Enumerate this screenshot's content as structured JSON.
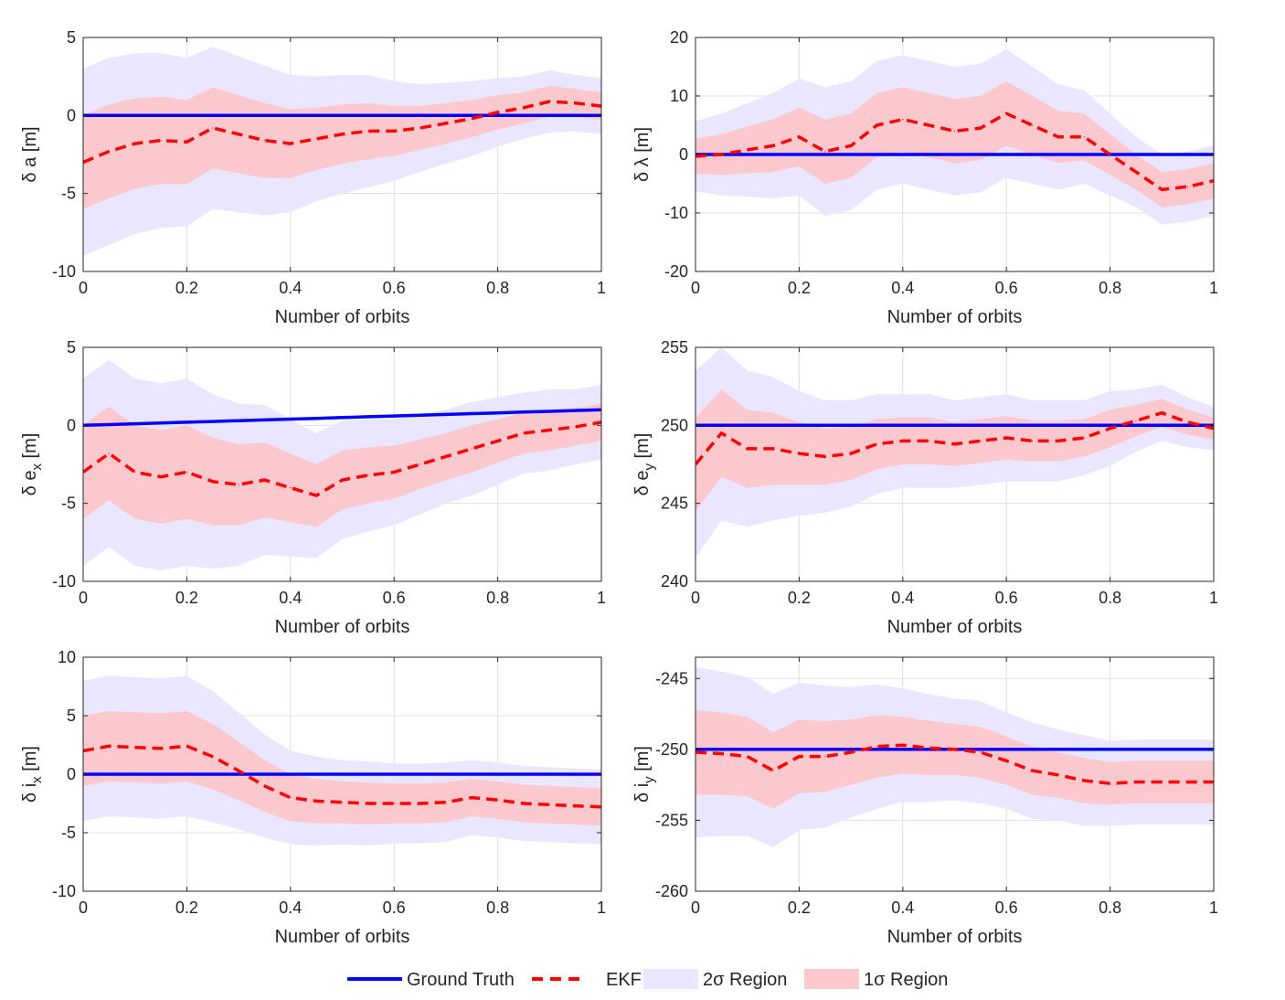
{
  "colors": {
    "truth": "#0000ff",
    "ekf": "#ff0000",
    "two_sigma": "#ebe6ff",
    "one_sigma": "#fac8cd",
    "grid": "#e1e1e1",
    "axis": "#262626"
  },
  "legend": {
    "items": [
      {
        "label": "Ground Truth",
        "style": "solid-line",
        "color": "#0000ff"
      },
      {
        "label": "EKF",
        "style": "dashed-line",
        "color": "#ff0000"
      },
      {
        "label": "2σ Region",
        "style": "patch",
        "color": "#ebe6ff"
      },
      {
        "label": "1σ Region",
        "style": "patch",
        "color": "#fac8cd"
      }
    ]
  },
  "chart_data": [
    {
      "type": "line",
      "ylabel": {
        "base": "δ a [m]",
        "sub": ""
      },
      "xlabel": "Number of orbits",
      "xlim": [
        0,
        1
      ],
      "ylim": [
        -10,
        5
      ],
      "xticks": [
        0,
        0.2,
        0.4,
        0.6,
        0.8,
        1
      ],
      "xticklabels": [
        "0",
        "0.2",
        "0.4",
        "0.6",
        "0.8",
        "1"
      ],
      "yticks": [
        -10,
        -5,
        0,
        5
      ],
      "yticklabels": [
        "-10",
        "-5",
        "0",
        "5"
      ],
      "grid": true,
      "x": [
        0,
        0.05,
        0.1,
        0.15,
        0.2,
        0.25,
        0.3,
        0.35,
        0.4,
        0.45,
        0.5,
        0.55,
        0.6,
        0.65,
        0.7,
        0.75,
        0.8,
        0.85,
        0.9,
        0.95,
        1
      ],
      "truth": [
        0,
        0,
        0,
        0,
        0,
        0,
        0,
        0,
        0,
        0,
        0,
        0,
        0,
        0,
        0,
        0,
        0,
        0,
        0,
        0,
        0
      ],
      "ekf": [
        -3.0,
        -2.3,
        -1.8,
        -1.6,
        -1.7,
        -0.8,
        -1.2,
        -1.6,
        -1.8,
        -1.5,
        -1.2,
        -1.0,
        -1.0,
        -0.8,
        -0.5,
        -0.2,
        0.2,
        0.5,
        0.9,
        0.8,
        0.6
      ],
      "sigma1": [
        3.0,
        3.0,
        2.9,
        2.8,
        2.7,
        2.6,
        2.5,
        2.4,
        2.2,
        2.0,
        1.9,
        1.8,
        1.6,
        1.4,
        1.3,
        1.2,
        1.1,
        1.0,
        1.0,
        0.9,
        0.9
      ],
      "sigma2": [
        6.0,
        6.0,
        5.8,
        5.6,
        5.4,
        5.2,
        5.0,
        4.8,
        4.4,
        4.0,
        3.8,
        3.6,
        3.2,
        2.8,
        2.6,
        2.4,
        2.2,
        2.0,
        2.0,
        1.8,
        1.8
      ]
    },
    {
      "type": "line",
      "ylabel": {
        "base": "δ λ [m]",
        "sub": ""
      },
      "xlabel": "Number of orbits",
      "xlim": [
        0,
        1
      ],
      "ylim": [
        -20,
        20
      ],
      "xticks": [
        0,
        0.2,
        0.4,
        0.6,
        0.8,
        1
      ],
      "xticklabels": [
        "0",
        "0.2",
        "0.4",
        "0.6",
        "0.8",
        "1"
      ],
      "yticks": [
        -20,
        -10,
        0,
        10,
        20
      ],
      "yticklabels": [
        "-20",
        "-10",
        "0",
        "10",
        "20"
      ],
      "grid": true,
      "x": [
        0,
        0.05,
        0.1,
        0.15,
        0.2,
        0.25,
        0.3,
        0.35,
        0.4,
        0.45,
        0.5,
        0.55,
        0.6,
        0.65,
        0.7,
        0.75,
        0.8,
        0.85,
        0.9,
        0.95,
        1
      ],
      "truth": [
        0,
        0,
        0,
        0,
        0,
        0,
        0,
        0,
        0,
        0,
        0,
        0,
        0,
        0,
        0,
        0,
        0,
        0,
        0,
        0,
        0
      ],
      "ekf": [
        -0.3,
        0.0,
        0.8,
        1.5,
        3.0,
        0.5,
        1.5,
        5.0,
        6.0,
        5.0,
        4.0,
        4.5,
        7.0,
        5.0,
        3.0,
        3.0,
        0.0,
        -3.0,
        -6.0,
        -5.5,
        -4.5
      ],
      "sigma1": [
        3.0,
        3.5,
        4.0,
        4.5,
        5.0,
        5.5,
        5.5,
        5.5,
        5.5,
        5.5,
        5.5,
        5.5,
        5.5,
        5.0,
        4.5,
        4.0,
        3.5,
        3.0,
        3.0,
        3.0,
        3.0
      ],
      "sigma2": [
        6.0,
        7.0,
        8.0,
        9.0,
        10.0,
        11.0,
        11.0,
        11.0,
        11.0,
        11.0,
        11.0,
        11.0,
        11.0,
        10.0,
        9.0,
        8.0,
        7.0,
        6.0,
        6.0,
        6.0,
        6.0
      ]
    },
    {
      "type": "line",
      "ylabel": {
        "base": "δ e",
        "sub": "x",
        "unit": " [m]"
      },
      "xlabel": "Number of orbits",
      "xlim": [
        0,
        1
      ],
      "ylim": [
        -10,
        5
      ],
      "xticks": [
        0,
        0.2,
        0.4,
        0.6,
        0.8,
        1
      ],
      "xticklabels": [
        "0",
        "0.2",
        "0.4",
        "0.6",
        "0.8",
        "1"
      ],
      "yticks": [
        -10,
        -5,
        0,
        5
      ],
      "yticklabels": [
        "-10",
        "-5",
        "0",
        "5"
      ],
      "grid": true,
      "x": [
        0,
        0.05,
        0.1,
        0.15,
        0.2,
        0.25,
        0.3,
        0.35,
        0.4,
        0.45,
        0.5,
        0.55,
        0.6,
        0.65,
        0.7,
        0.75,
        0.8,
        0.85,
        0.9,
        0.95,
        1
      ],
      "truth": [
        0,
        0.05,
        0.1,
        0.15,
        0.2,
        0.25,
        0.3,
        0.35,
        0.4,
        0.45,
        0.5,
        0.55,
        0.6,
        0.65,
        0.7,
        0.75,
        0.8,
        0.85,
        0.9,
        0.95,
        1.0
      ],
      "ekf": [
        -3.0,
        -1.8,
        -3.0,
        -3.3,
        -3.0,
        -3.6,
        -3.8,
        -3.5,
        -4.0,
        -4.5,
        -3.5,
        -3.2,
        -3.0,
        -2.5,
        -2.0,
        -1.5,
        -1.0,
        -0.5,
        -0.3,
        -0.1,
        0.2
      ],
      "sigma1": [
        3.0,
        3.0,
        3.0,
        3.0,
        3.0,
        2.8,
        2.6,
        2.4,
        2.2,
        2.0,
        1.9,
        1.8,
        1.7,
        1.6,
        1.5,
        1.5,
        1.4,
        1.3,
        1.3,
        1.2,
        1.2
      ],
      "sigma2": [
        6.0,
        6.0,
        6.0,
        6.0,
        6.0,
        5.6,
        5.2,
        4.8,
        4.4,
        4.0,
        3.8,
        3.6,
        3.4,
        3.2,
        3.0,
        3.0,
        2.8,
        2.6,
        2.6,
        2.4,
        2.4
      ]
    },
    {
      "type": "line",
      "ylabel": {
        "base": "δ e",
        "sub": "y",
        "unit": " [m]"
      },
      "xlabel": "Number of orbits",
      "xlim": [
        0,
        1
      ],
      "ylim": [
        240,
        255
      ],
      "xticks": [
        0,
        0.2,
        0.4,
        0.6,
        0.8,
        1
      ],
      "xticklabels": [
        "0",
        "0.2",
        "0.4",
        "0.6",
        "0.8",
        "1"
      ],
      "yticks": [
        240,
        245,
        250,
        255
      ],
      "yticklabels": [
        "240",
        "245",
        "250",
        "255"
      ],
      "grid": true,
      "x": [
        0,
        0.05,
        0.1,
        0.15,
        0.2,
        0.25,
        0.3,
        0.35,
        0.4,
        0.45,
        0.5,
        0.55,
        0.6,
        0.65,
        0.7,
        0.75,
        0.8,
        0.85,
        0.9,
        0.95,
        1
      ],
      "truth": [
        250,
        250,
        250,
        250,
        250,
        250,
        250,
        250,
        250,
        250,
        250,
        250,
        250,
        250,
        250,
        250,
        250,
        250,
        250,
        250,
        250
      ],
      "ekf": [
        247.5,
        249.5,
        248.5,
        248.5,
        248.2,
        248.0,
        248.2,
        248.8,
        249.0,
        249.0,
        248.8,
        249.0,
        249.2,
        249.0,
        249.0,
        249.2,
        249.8,
        250.3,
        250.8,
        250.2,
        249.8
      ],
      "sigma1": [
        3.0,
        2.8,
        2.5,
        2.3,
        2.0,
        1.8,
        1.7,
        1.6,
        1.5,
        1.5,
        1.4,
        1.4,
        1.4,
        1.3,
        1.3,
        1.2,
        1.2,
        1.0,
        0.9,
        0.8,
        0.7
      ],
      "sigma2": [
        6.0,
        5.6,
        5.0,
        4.6,
        4.0,
        3.6,
        3.4,
        3.2,
        3.0,
        3.0,
        2.8,
        2.8,
        2.8,
        2.6,
        2.6,
        2.4,
        2.4,
        2.0,
        1.8,
        1.6,
        1.4
      ]
    },
    {
      "type": "line",
      "ylabel": {
        "base": "δ i",
        "sub": "x",
        "unit": " [m]"
      },
      "xlabel": "Number of orbits",
      "xlim": [
        0,
        1
      ],
      "ylim": [
        -10,
        10
      ],
      "xticks": [
        0,
        0.2,
        0.4,
        0.6,
        0.8,
        1
      ],
      "xticklabels": [
        "0",
        "0.2",
        "0.4",
        "0.6",
        "0.8",
        "1"
      ],
      "yticks": [
        -10,
        -5,
        0,
        5,
        10
      ],
      "yticklabels": [
        "-10",
        "-5",
        "0",
        "5",
        "10"
      ],
      "grid": true,
      "x": [
        0,
        0.05,
        0.1,
        0.15,
        0.2,
        0.25,
        0.3,
        0.35,
        0.4,
        0.45,
        0.5,
        0.55,
        0.6,
        0.65,
        0.7,
        0.75,
        0.8,
        0.85,
        0.9,
        0.95,
        1
      ],
      "truth": [
        0,
        0,
        0,
        0,
        0,
        0,
        0,
        0,
        0,
        0,
        0,
        0,
        0,
        0,
        0,
        0,
        0,
        0,
        0,
        0,
        0
      ],
      "ekf": [
        2.0,
        2.4,
        2.3,
        2.2,
        2.4,
        1.5,
        0.3,
        -1.0,
        -2.0,
        -2.3,
        -2.4,
        -2.5,
        -2.5,
        -2.5,
        -2.4,
        -2.0,
        -2.2,
        -2.5,
        -2.6,
        -2.7,
        -2.8
      ],
      "sigma1": [
        3.0,
        3.0,
        3.0,
        3.0,
        3.0,
        2.8,
        2.5,
        2.2,
        2.0,
        1.9,
        1.8,
        1.8,
        1.7,
        1.7,
        1.7,
        1.6,
        1.6,
        1.6,
        1.6,
        1.6,
        1.6
      ],
      "sigma2": [
        6.0,
        6.0,
        6.0,
        6.0,
        6.0,
        5.6,
        5.0,
        4.4,
        4.0,
        3.8,
        3.6,
        3.6,
        3.4,
        3.4,
        3.4,
        3.2,
        3.2,
        3.2,
        3.2,
        3.2,
        3.2
      ]
    },
    {
      "type": "line",
      "ylabel": {
        "base": "δ i",
        "sub": "y",
        "unit": " [m]"
      },
      "xlabel": "Number of orbits",
      "xlim": [
        0,
        1
      ],
      "ylim": [
        -260,
        -243.5
      ],
      "xticks": [
        0,
        0.2,
        0.4,
        0.6,
        0.8,
        1
      ],
      "xticklabels": [
        "0",
        "0.2",
        "0.4",
        "0.6",
        "0.8",
        "1"
      ],
      "yticks": [
        -260,
        -255,
        -250,
        -245
      ],
      "yticklabels": [
        "-260",
        "-255",
        "-250",
        "-245"
      ],
      "grid": true,
      "x": [
        0,
        0.05,
        0.1,
        0.15,
        0.2,
        0.25,
        0.3,
        0.35,
        0.4,
        0.45,
        0.5,
        0.55,
        0.6,
        0.65,
        0.7,
        0.75,
        0.8,
        0.85,
        0.9,
        0.95,
        1
      ],
      "truth": [
        -250,
        -250,
        -250,
        -250,
        -250,
        -250,
        -250,
        -250,
        -250,
        -250,
        -250,
        -250,
        -250,
        -250,
        -250,
        -250,
        -250,
        -250,
        -250,
        -250,
        -250
      ],
      "ekf": [
        -250.2,
        -250.3,
        -250.5,
        -251.5,
        -250.5,
        -250.5,
        -250.2,
        -249.8,
        -249.7,
        -249.9,
        -250.0,
        -250.2,
        -250.8,
        -251.5,
        -251.8,
        -252.2,
        -252.4,
        -252.3,
        -252.3,
        -252.3,
        -252.3
      ],
      "sigma1": [
        3.0,
        2.9,
        2.8,
        2.7,
        2.6,
        2.5,
        2.3,
        2.2,
        2.0,
        1.9,
        1.8,
        1.8,
        1.7,
        1.7,
        1.6,
        1.6,
        1.5,
        1.5,
        1.5,
        1.5,
        1.5
      ],
      "sigma2": [
        6.0,
        5.8,
        5.6,
        5.4,
        5.2,
        5.0,
        4.6,
        4.4,
        4.0,
        3.8,
        3.6,
        3.6,
        3.4,
        3.4,
        3.2,
        3.2,
        3.0,
        3.0,
        3.0,
        3.0,
        3.0
      ]
    }
  ]
}
